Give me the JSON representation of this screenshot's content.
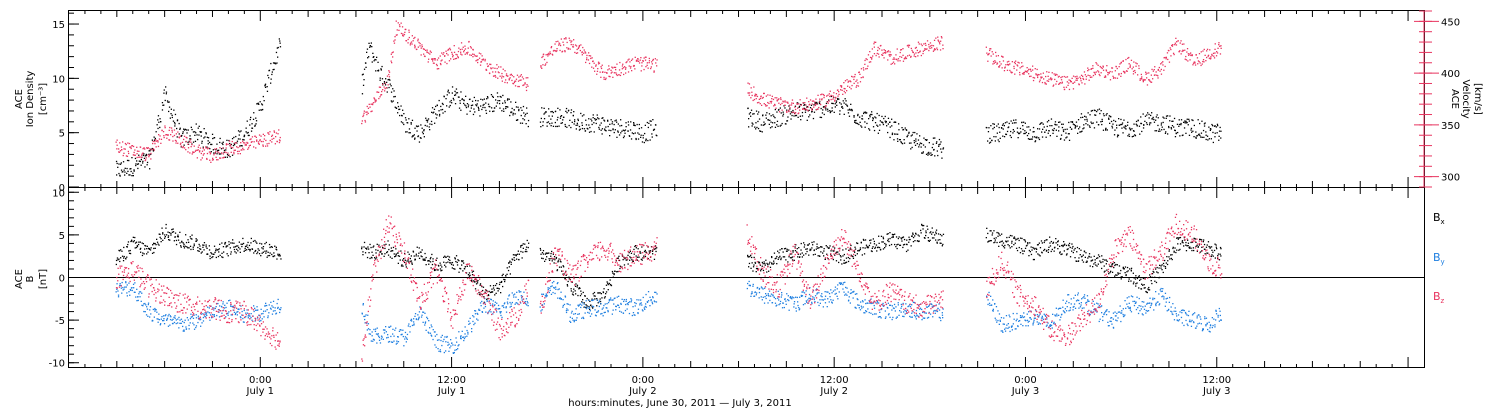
{
  "colors": {
    "black": "#000000",
    "pink": "#e8345f",
    "blue": "#1f7fe0"
  },
  "xaxis": {
    "title": "hours:minutes, June 30, 2011 — July  3, 2011",
    "ticks": [
      {
        "t": 24,
        "time": "0:00",
        "date": "July 1"
      },
      {
        "t": 36,
        "time": "12:00",
        "date": "July 1"
      },
      {
        "t": 48,
        "time": "0:00",
        "date": "July 2"
      },
      {
        "t": 60,
        "time": "12:00",
        "date": "July 2"
      },
      {
        "t": 72,
        "time": "0:00",
        "date": "July 3"
      },
      {
        "t": 84,
        "time": "12:00",
        "date": "July 3"
      }
    ]
  },
  "chart_data": [
    {
      "type": "scatter",
      "panel": "top",
      "left_axis_label": [
        "ACE",
        "Ion Density",
        "[cm⁻³]"
      ],
      "right_axis_label": [
        "ACE",
        "Velocity",
        "[km/s]"
      ],
      "left_ticks": [
        "0",
        "5",
        "10",
        "15"
      ],
      "right_ticks": [
        "300",
        "350",
        "400",
        "450"
      ],
      "left_ylim": [
        0,
        16.2
      ],
      "right_ylim": [
        290,
        460
      ],
      "series": [
        {
          "axis": "left",
          "color": "#000000",
          "segments": [
            {
              "x": [
                14.9,
                16,
                17,
                18,
                19,
                20,
                21,
                22,
                23,
                24,
                24.5,
                25.2
              ],
              "y": [
                1.5,
                2.0,
                2.5,
                8.5,
                4.5,
                5.0,
                4.0,
                3.5,
                5.0,
                7.5,
                10.0,
                13.0
              ]
            },
            {
              "x": [
                30.3,
                30.8,
                31.5,
                32,
                33,
                34,
                35,
                36,
                37,
                38,
                39,
                40,
                40.8
              ],
              "y": [
                9.0,
                13.0,
                10.5,
                9.5,
                6.0,
                5.0,
                7.0,
                8.5,
                7.5,
                7.5,
                8.0,
                7.0,
                6.5
              ]
            },
            {
              "x": [
                41.5,
                43,
                44,
                45,
                46,
                47,
                48,
                48.8
              ],
              "y": [
                6.5,
                6.5,
                6.0,
                6.0,
                5.5,
                5.5,
                5.0,
                5.5
              ]
            },
            {
              "x": [
                54.5,
                55.5,
                56.5,
                57.5,
                58.5,
                59.5,
                60.5,
                61.5,
                62.5,
                63.5,
                64.5,
                65.5,
                66.8
              ],
              "y": [
                6.5,
                6.0,
                6.5,
                7.0,
                7.0,
                7.5,
                7.5,
                6.5,
                6.0,
                5.5,
                4.5,
                4.0,
                3.5
              ]
            },
            {
              "x": [
                69.5,
                70.5,
                71.5,
                72.5,
                73.5,
                74.5,
                75.5,
                76.5,
                77.5,
                78.5,
                79.5,
                80.5,
                81.5,
                82.5,
                83.5,
                84.2
              ],
              "y": [
                5.0,
                5.0,
                5.5,
                5.0,
                5.5,
                5.0,
                6.0,
                6.5,
                5.5,
                5.5,
                6.0,
                6.0,
                5.5,
                5.5,
                5.0,
                5.0
              ]
            }
          ]
        },
        {
          "axis": "right",
          "color": "#e8345f",
          "segments": [
            {
              "x": [
                14.9,
                16,
                17,
                18,
                19,
                20,
                21,
                22,
                23,
                24,
                25.2
              ],
              "y": [
                330,
                325,
                322,
                345,
                335,
                325,
                320,
                328,
                330,
                335,
                340
              ]
            },
            {
              "x": [
                30.3,
                31,
                32,
                32.5,
                33,
                34,
                35,
                36,
                37,
                38,
                39,
                40,
                40.8
              ],
              "y": [
                355,
                370,
                395,
                445,
                440,
                425,
                410,
                420,
                425,
                410,
                400,
                395,
                390
              ]
            },
            {
              "x": [
                41.5,
                42.5,
                43.5,
                44.5,
                45.5,
                46.5,
                47.5,
                48.8
              ],
              "y": [
                410,
                425,
                430,
                415,
                400,
                405,
                410,
                408
              ]
            },
            {
              "x": [
                54.5,
                55.5,
                56.5,
                57.5,
                58.5,
                59.5,
                60.5,
                61.5,
                62.5,
                63.5,
                64.5,
                65.5,
                66.8
              ],
              "y": [
                385,
                375,
                370,
                368,
                370,
                375,
                385,
                395,
                425,
                415,
                420,
                425,
                430
              ]
            },
            {
              "x": [
                69.5,
                70.5,
                71.5,
                72.5,
                73.5,
                74.5,
                75.5,
                76.5,
                77.5,
                78.5,
                79.5,
                80.5,
                81.5,
                82.5,
                83.5,
                84.2
              ],
              "y": [
                420,
                410,
                405,
                400,
                395,
                390,
                395,
                405,
                400,
                410,
                395,
                405,
                430,
                410,
                420,
                425
              ]
            }
          ]
        }
      ]
    },
    {
      "type": "scatter",
      "panel": "bottom",
      "left_axis_label": [
        "ACE",
        "B",
        "[nT]"
      ],
      "left_ticks": [
        "-10",
        "-5",
        "0",
        "5",
        "10"
      ],
      "left_ylim": [
        -10.5,
        10.5
      ],
      "legend": [
        {
          "name": "B",
          "sub": "x",
          "color": "#000000"
        },
        {
          "name": "B",
          "sub": "y",
          "color": "#1f7fe0"
        },
        {
          "name": "B",
          "sub": "z",
          "color": "#e8345f"
        }
      ],
      "series": [
        {
          "name": "Bx",
          "color": "#000000",
          "segments": [
            {
              "x": [
                14.9,
                16,
                17,
                18,
                19,
                20,
                21,
                22,
                23,
                24,
                25.2
              ],
              "y": [
                2.0,
                4.0,
                3.0,
                5.5,
                4.5,
                4.0,
                3.0,
                3.5,
                4.0,
                3.5,
                3.0
              ]
            },
            {
              "x": [
                30.3,
                31,
                32,
                33,
                34,
                35,
                36,
                37,
                38,
                39,
                40,
                40.8
              ],
              "y": [
                3.5,
                3.0,
                3.5,
                2.0,
                3.0,
                1.5,
                2.0,
                1.0,
                -2.0,
                -1.0,
                2.5,
                4.0
              ]
            },
            {
              "x": [
                41.5,
                42.5,
                43.5,
                44.5,
                45.5,
                46.5,
                47.5,
                48.8
              ],
              "y": [
                3.0,
                2.0,
                -1.0,
                -3.0,
                -2.0,
                2.0,
                3.0,
                3.0
              ]
            },
            {
              "x": [
                54.5,
                55.5,
                56.5,
                57.5,
                58.5,
                59.5,
                60.5,
                61.5,
                62.5,
                63.5,
                64.5,
                65.5,
                66.8
              ],
              "y": [
                2.0,
                1.0,
                2.5,
                3.0,
                3.5,
                3.0,
                2.5,
                3.5,
                4.0,
                4.5,
                4.0,
                5.5,
                4.5
              ]
            },
            {
              "x": [
                69.5,
                70.5,
                71.5,
                72.5,
                73.5,
                74.5,
                75.5,
                76.5,
                77.5,
                78.5,
                79.5,
                80.5,
                81.5,
                82.5,
                83.5,
                84.2
              ],
              "y": [
                5.0,
                4.5,
                4.0,
                3.0,
                4.0,
                3.5,
                2.5,
                2.0,
                1.0,
                0.5,
                -1.0,
                1.0,
                4.0,
                4.0,
                3.5,
                3.0
              ]
            }
          ]
        },
        {
          "name": "By",
          "color": "#1f7fe0",
          "segments": [
            {
              "x": [
                14.9,
                16,
                17,
                18,
                19,
                20,
                21,
                22,
                23,
                24,
                25.2
              ],
              "y": [
                -1.5,
                -1.0,
                -4.0,
                -5.0,
                -5.5,
                -5.0,
                -4.0,
                -3.5,
                -4.5,
                -4.0,
                -3.0
              ]
            },
            {
              "x": [
                30.3,
                31,
                32,
                33,
                34,
                35,
                36,
                37,
                38,
                39,
                40,
                40.8
              ],
              "y": [
                -3.0,
                -7.0,
                -6.5,
                -7.0,
                -4.0,
                -7.5,
                -8.0,
                -6.0,
                -3.0,
                -4.0,
                -2.0,
                -2.5
              ]
            },
            {
              "x": [
                41.5,
                42.5,
                43.5,
                44.5,
                45.5,
                46.5,
                47.5,
                48.8
              ],
              "y": [
                -3.0,
                -1.0,
                -4.5,
                -3.5,
                -3.5,
                -3.0,
                -3.5,
                -2.0
              ]
            },
            {
              "x": [
                54.5,
                55.5,
                56.5,
                57.5,
                58.5,
                59.5,
                60.5,
                61.5,
                62.5,
                63.5,
                64.5,
                65.5,
                66.8
              ],
              "y": [
                -1.0,
                -2.0,
                -2.5,
                -3.0,
                -2.0,
                -2.5,
                -1.0,
                -3.0,
                -3.5,
                -4.0,
                -3.5,
                -4.0,
                -4.0
              ]
            },
            {
              "x": [
                69.5,
                70.5,
                71.5,
                72.5,
                73.5,
                74.5,
                75.5,
                76.5,
                77.5,
                78.5,
                79.5,
                80.5,
                81.5,
                82.5,
                83.5,
                84.2
              ],
              "y": [
                -2.0,
                -5.5,
                -5.0,
                -4.5,
                -5.5,
                -3.0,
                -2.5,
                -4.0,
                -5.0,
                -3.0,
                -3.5,
                -2.0,
                -4.5,
                -5.0,
                -5.5,
                -4.0
              ]
            }
          ]
        },
        {
          "name": "Bz",
          "color": "#e8345f",
          "segments": [
            {
              "x": [
                14.9,
                16,
                17,
                18,
                19,
                20,
                21,
                22,
                23,
                24,
                25.2
              ],
              "y": [
                0.0,
                1.0,
                -1.0,
                -2.0,
                -3.0,
                -3.5,
                -3.5,
                -4.0,
                -4.0,
                -5.5,
                -7.5
              ]
            },
            {
              "x": [
                30.3,
                31,
                32,
                33,
                34,
                35,
                36,
                37,
                38,
                39,
                40,
                40.8
              ],
              "y": [
                -9.5,
                0.0,
                6.5,
                3.0,
                -3.0,
                1.0,
                -5.0,
                1.0,
                -2.0,
                -6.0,
                -4.5,
                -1.0
              ]
            },
            {
              "x": [
                41.5,
                42.5,
                43.5,
                44.5,
                45.5,
                46.5,
                47.5,
                48.8
              ],
              "y": [
                -4.0,
                3.0,
                0.0,
                2.0,
                3.5,
                2.0,
                2.5,
                3.5
              ]
            },
            {
              "x": [
                54.5,
                55.5,
                56.5,
                57.5,
                58.5,
                59.5,
                60.5,
                61.5,
                62.5,
                63.5,
                64.5,
                65.5,
                66.8
              ],
              "y": [
                5.0,
                0.5,
                -1.0,
                3.0,
                -3.0,
                2.0,
                5.0,
                1.0,
                -3.0,
                -1.5,
                -3.0,
                -3.5,
                -2.5
              ]
            },
            {
              "x": [
                69.5,
                70.5,
                71.5,
                72.5,
                73.5,
                74.5,
                75.5,
                76.5,
                77.5,
                78.5,
                79.5,
                80.5,
                81.5,
                82.5,
                83.5,
                84.2
              ],
              "y": [
                -1.5,
                2.0,
                -2.0,
                -3.0,
                -6.0,
                -7.0,
                -5.0,
                -3.0,
                3.0,
                5.0,
                1.0,
                3.0,
                6.5,
                5.0,
                2.0,
                1.0
              ]
            }
          ]
        }
      ]
    }
  ]
}
